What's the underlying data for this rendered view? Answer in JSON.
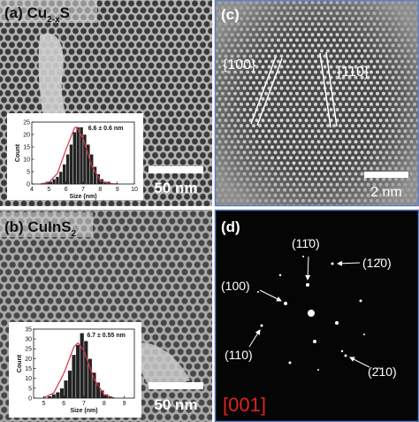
{
  "panels": {
    "a": {
      "label": {
        "prefix": "(a) Cu",
        "sub": "2-x",
        "suffix": "S"
      },
      "scale_bar": "50 nm"
    },
    "b": {
      "label": {
        "prefix": "(b) CuInS",
        "sub": "2"
      },
      "scale_bar": "50 nm"
    },
    "c": {
      "label": "(c)",
      "planes": [
        "{100}",
        "{110}"
      ],
      "scale_bar": "2 nm"
    },
    "d": {
      "label": "(d)",
      "spots": [
        "(11̄0)",
        "(12̄0)",
        "(100)",
        "(110)",
        "(2̄10)"
      ],
      "zone_axis": "[001]"
    }
  },
  "chart_data": [
    {
      "type": "histogram",
      "annotation": "6.6 ± 0.6 nm",
      "x_label": "Size (nm)",
      "y_label": "Count",
      "bins": [
        4.8,
        5.0,
        5.2,
        5.4,
        5.6,
        5.8,
        6.0,
        6.2,
        6.4,
        6.6,
        6.8,
        7.0,
        7.2,
        7.4,
        7.6,
        7.8,
        8.0,
        8.2,
        8.4,
        8.6
      ],
      "values": [
        1,
        1,
        2,
        3,
        5,
        8,
        12,
        16,
        21,
        23,
        23,
        20,
        16,
        12,
        7,
        4,
        2,
        1,
        1
      ],
      "color": "#222222",
      "xlim": [
        4,
        10
      ],
      "xticks": [
        4,
        5,
        6,
        7,
        8,
        9,
        10
      ],
      "ylim": [
        0,
        25
      ],
      "yticks": [
        0,
        5,
        10,
        15,
        20,
        25
      ],
      "fit": {
        "color": "#d9304a",
        "x": [
          4.5,
          5,
          5.5,
          6,
          6.5,
          6.6,
          7,
          7.5,
          8,
          8.5,
          9
        ],
        "values": [
          0,
          0.6,
          4.3,
          14,
          22.7,
          23,
          18.4,
          7.5,
          1.5,
          0.2,
          0
        ]
      }
    },
    {
      "type": "histogram",
      "annotation": "6.7 ± 0.55 nm",
      "x_label": "Size (nm)",
      "y_label": "Count",
      "bins": [
        5.2,
        5.4,
        5.6,
        5.8,
        6.0,
        6.2,
        6.4,
        6.6,
        6.8,
        7.0,
        7.2,
        7.4,
        7.6,
        7.8,
        8.0,
        8.2,
        8.4
      ],
      "values": [
        1,
        2,
        3,
        5,
        9,
        14,
        22,
        27,
        33,
        29,
        20,
        13,
        8,
        4,
        2,
        1
      ],
      "color": "#222222",
      "xlim": [
        4.5,
        9.5
      ],
      "xticks": [
        5,
        6,
        7,
        8,
        9
      ],
      "ylim": [
        0,
        35
      ],
      "yticks": [
        0,
        5,
        10,
        15,
        20,
        25,
        30,
        35
      ],
      "fit": {
        "color": "#d9304a",
        "x": [
          5,
          5.5,
          6,
          6.5,
          6.7,
          7,
          7.5,
          8,
          8.5
        ],
        "values": [
          0.2,
          2.6,
          12.5,
          26,
          28,
          24,
          9.7,
          1.7,
          0.1
        ]
      }
    }
  ]
}
